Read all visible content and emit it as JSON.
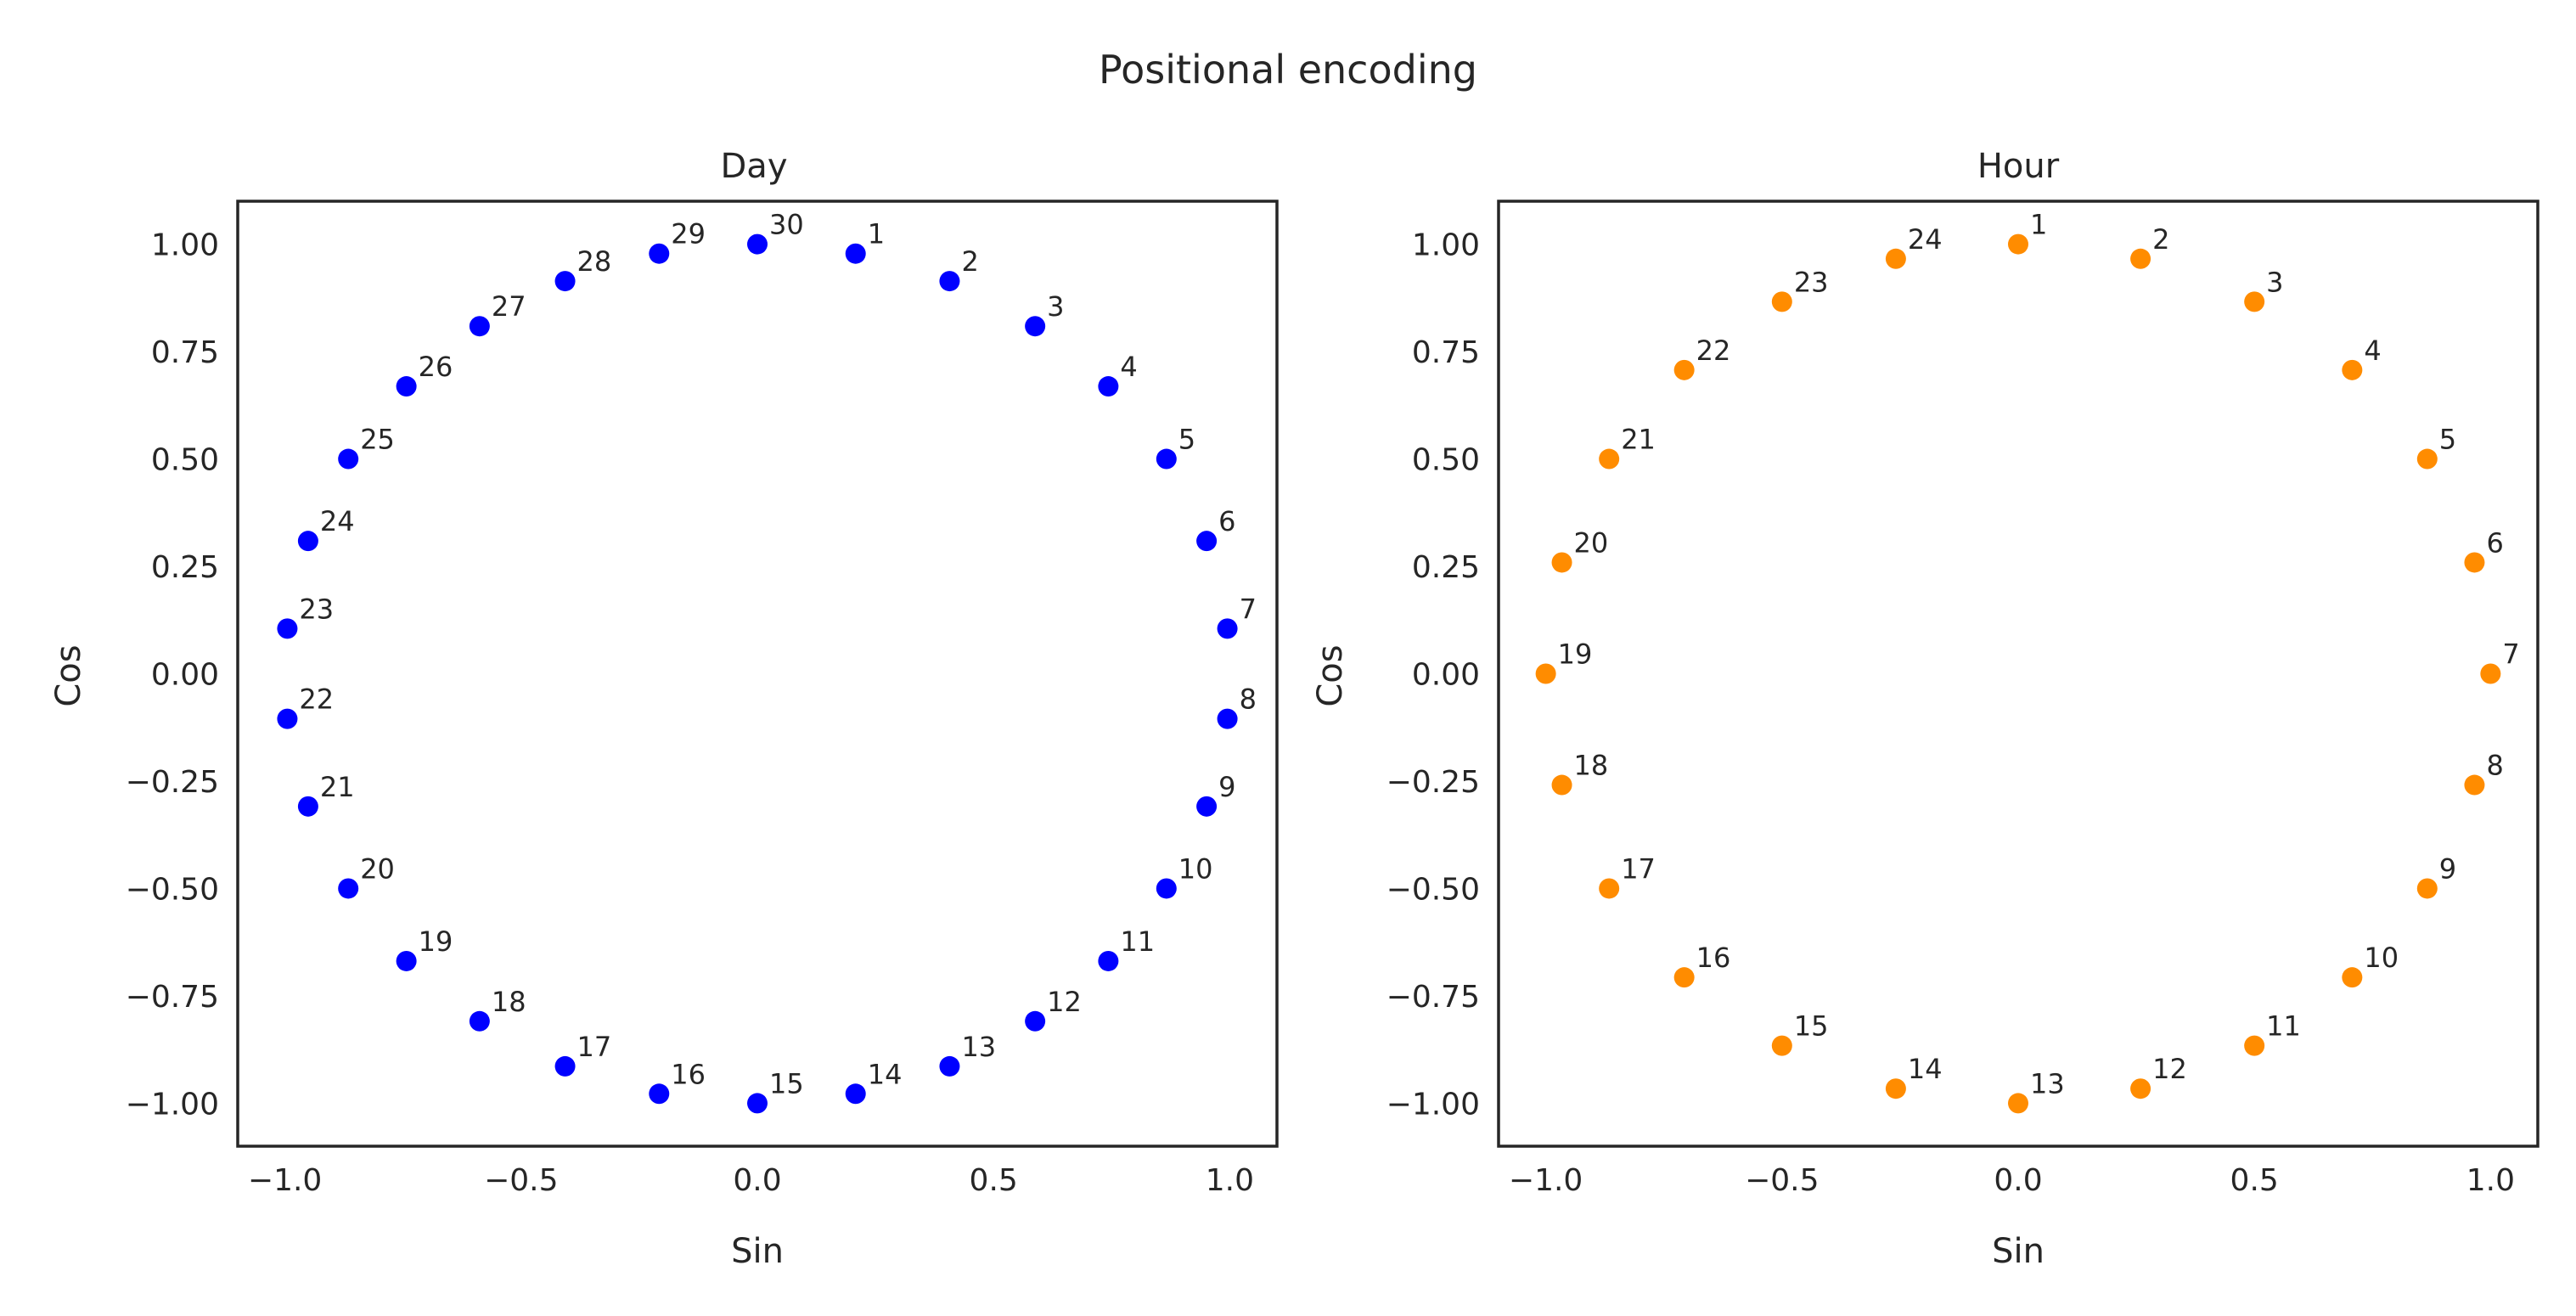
{
  "figure": {
    "title": "Positional encoding"
  },
  "chart_data": [
    {
      "type": "scatter",
      "title": "Day",
      "xlabel": "Sin",
      "ylabel": "Cos",
      "xlim": [
        -1.1,
        1.1
      ],
      "ylim": [
        -1.1,
        1.1
      ],
      "xticks": [
        -1.0,
        -0.5,
        0.0,
        0.5,
        1.0
      ],
      "xtick_labels": [
        "−1.0",
        "−0.5",
        "0.0",
        "0.5",
        "1.0"
      ],
      "yticks": [
        1.0,
        0.75,
        0.5,
        0.25,
        0.0,
        -0.25,
        -0.5,
        -0.75,
        -1.0
      ],
      "ytick_labels": [
        "1.00",
        "0.75",
        "0.50",
        "0.25",
        "0.00",
        "−0.25",
        "−0.50",
        "−0.75",
        "−1.00"
      ],
      "grid": false,
      "color": "#0000ff",
      "points": [
        {
          "label": "1",
          "x": 0.208,
          "y": 0.978
        },
        {
          "label": "2",
          "x": 0.407,
          "y": 0.914
        },
        {
          "label": "3",
          "x": 0.588,
          "y": 0.809
        },
        {
          "label": "4",
          "x": 0.743,
          "y": 0.669
        },
        {
          "label": "5",
          "x": 0.866,
          "y": 0.5
        },
        {
          "label": "6",
          "x": 0.951,
          "y": 0.309
        },
        {
          "label": "7",
          "x": 0.995,
          "y": 0.105
        },
        {
          "label": "8",
          "x": 0.995,
          "y": -0.105
        },
        {
          "label": "9",
          "x": 0.951,
          "y": -0.309
        },
        {
          "label": "10",
          "x": 0.866,
          "y": -0.5
        },
        {
          "label": "11",
          "x": 0.743,
          "y": -0.669
        },
        {
          "label": "12",
          "x": 0.588,
          "y": -0.809
        },
        {
          "label": "13",
          "x": 0.407,
          "y": -0.914
        },
        {
          "label": "14",
          "x": 0.208,
          "y": -0.978
        },
        {
          "label": "15",
          "x": 0.0,
          "y": -1.0
        },
        {
          "label": "16",
          "x": -0.208,
          "y": -0.978
        },
        {
          "label": "17",
          "x": -0.407,
          "y": -0.914
        },
        {
          "label": "18",
          "x": -0.588,
          "y": -0.809
        },
        {
          "label": "19",
          "x": -0.743,
          "y": -0.669
        },
        {
          "label": "20",
          "x": -0.866,
          "y": -0.5
        },
        {
          "label": "21",
          "x": -0.951,
          "y": -0.309
        },
        {
          "label": "22",
          "x": -0.995,
          "y": -0.105
        },
        {
          "label": "23",
          "x": -0.995,
          "y": 0.105
        },
        {
          "label": "24",
          "x": -0.951,
          "y": 0.309
        },
        {
          "label": "25",
          "x": -0.866,
          "y": 0.5
        },
        {
          "label": "26",
          "x": -0.743,
          "y": 0.669
        },
        {
          "label": "27",
          "x": -0.588,
          "y": 0.809
        },
        {
          "label": "28",
          "x": -0.407,
          "y": 0.914
        },
        {
          "label": "29",
          "x": -0.208,
          "y": 0.978
        },
        {
          "label": "30",
          "x": 0.0,
          "y": 1.0
        }
      ]
    },
    {
      "type": "scatter",
      "title": "Hour",
      "xlabel": "Sin",
      "ylabel": "Cos",
      "xlim": [
        -1.1,
        1.1
      ],
      "ylim": [
        -1.1,
        1.1
      ],
      "xticks": [
        -1.0,
        -0.5,
        0.0,
        0.5,
        1.0
      ],
      "xtick_labels": [
        "−1.0",
        "−0.5",
        "0.0",
        "0.5",
        "1.0"
      ],
      "yticks": [
        1.0,
        0.75,
        0.5,
        0.25,
        0.0,
        -0.25,
        -0.5,
        -0.75,
        -1.0
      ],
      "ytick_labels": [
        "1.00",
        "0.75",
        "0.50",
        "0.25",
        "0.00",
        "−0.25",
        "−0.50",
        "−0.75",
        "−1.00"
      ],
      "grid": false,
      "color": "#ff8c00",
      "points": [
        {
          "label": "1",
          "x": 0.0,
          "y": 1.0
        },
        {
          "label": "2",
          "x": 0.259,
          "y": 0.966
        },
        {
          "label": "3",
          "x": 0.5,
          "y": 0.866
        },
        {
          "label": "4",
          "x": 0.707,
          "y": 0.707
        },
        {
          "label": "5",
          "x": 0.866,
          "y": 0.5
        },
        {
          "label": "6",
          "x": 0.966,
          "y": 0.259
        },
        {
          "label": "7",
          "x": 1.0,
          "y": 0.0
        },
        {
          "label": "8",
          "x": 0.966,
          "y": -0.259
        },
        {
          "label": "9",
          "x": 0.866,
          "y": -0.5
        },
        {
          "label": "10",
          "x": 0.707,
          "y": -0.707
        },
        {
          "label": "11",
          "x": 0.5,
          "y": -0.866
        },
        {
          "label": "12",
          "x": 0.259,
          "y": -0.966
        },
        {
          "label": "13",
          "x": 0.0,
          "y": -1.0
        },
        {
          "label": "14",
          "x": -0.259,
          "y": -0.966
        },
        {
          "label": "15",
          "x": -0.5,
          "y": -0.866
        },
        {
          "label": "16",
          "x": -0.707,
          "y": -0.707
        },
        {
          "label": "17",
          "x": -0.866,
          "y": -0.5
        },
        {
          "label": "18",
          "x": -0.966,
          "y": -0.259
        },
        {
          "label": "19",
          "x": -1.0,
          "y": 0.0
        },
        {
          "label": "20",
          "x": -0.966,
          "y": 0.259
        },
        {
          "label": "21",
          "x": -0.866,
          "y": 0.5
        },
        {
          "label": "22",
          "x": -0.707,
          "y": 0.707
        },
        {
          "label": "23",
          "x": -0.5,
          "y": 0.866
        },
        {
          "label": "24",
          "x": -0.259,
          "y": 0.966
        }
      ]
    }
  ]
}
